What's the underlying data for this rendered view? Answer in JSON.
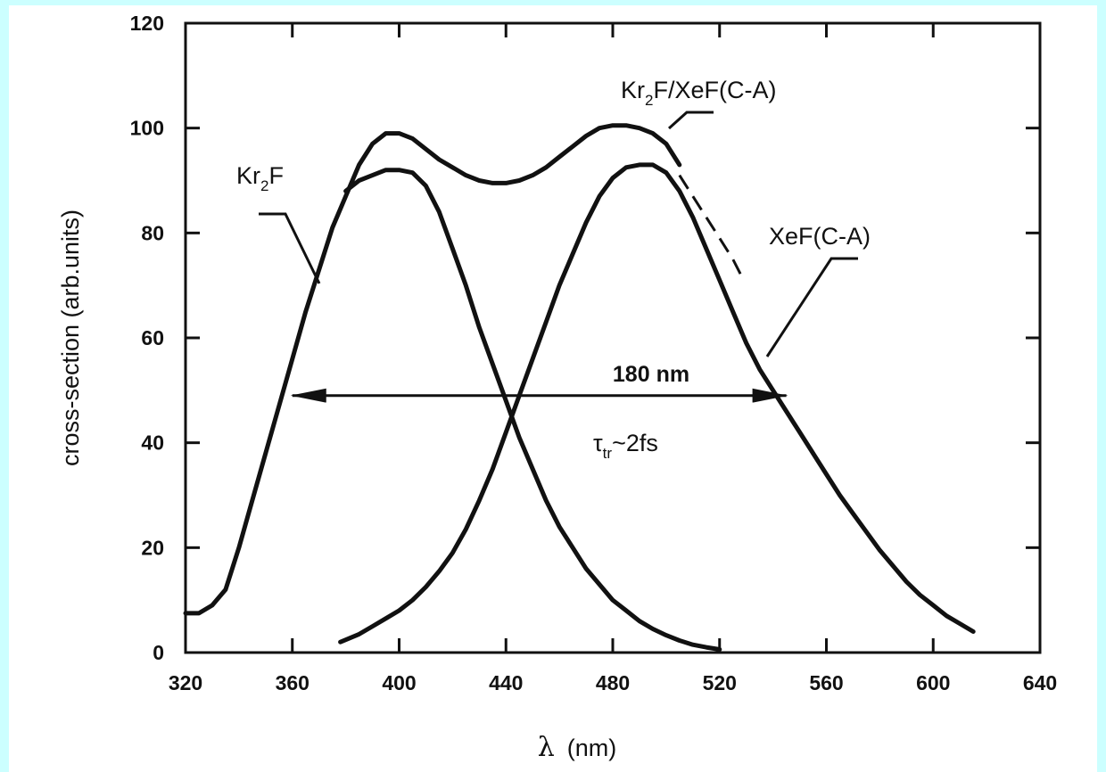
{
  "chart_data": {
    "type": "line",
    "xlabel_symbol": "λ",
    "xlabel_unit": "(nm)",
    "ylabel": "cross-section (arb.units)",
    "xlim": [
      320,
      640
    ],
    "ylim": [
      0,
      120
    ],
    "x_ticks": [
      320,
      360,
      400,
      440,
      480,
      520,
      560,
      600,
      640
    ],
    "y_ticks": [
      0,
      20,
      40,
      60,
      80,
      100,
      120
    ],
    "grid": false,
    "series": [
      {
        "name": "Kr2F",
        "label_main": "Kr",
        "label_sub": "2",
        "label_tail": "F",
        "points": [
          [
            380,
            88
          ],
          [
            385,
            90
          ],
          [
            390,
            91
          ],
          [
            395,
            92
          ],
          [
            400,
            92
          ],
          [
            405,
            91.5
          ],
          [
            410,
            89
          ],
          [
            415,
            84
          ],
          [
            420,
            77
          ],
          [
            425,
            70
          ],
          [
            430,
            62
          ],
          [
            435,
            55
          ],
          [
            440,
            48
          ],
          [
            445,
            41
          ],
          [
            450,
            35
          ],
          [
            455,
            29
          ],
          [
            460,
            24
          ],
          [
            465,
            20
          ],
          [
            470,
            16
          ],
          [
            475,
            13
          ],
          [
            480,
            10
          ],
          [
            485,
            8
          ],
          [
            490,
            6
          ],
          [
            495,
            4.5
          ],
          [
            500,
            3.3
          ],
          [
            505,
            2.3
          ],
          [
            510,
            1.5
          ],
          [
            515,
            1
          ],
          [
            520,
            0.6
          ]
        ]
      },
      {
        "name": "XeF(C-A)",
        "points": [
          [
            378,
            2
          ],
          [
            385,
            3.5
          ],
          [
            390,
            5
          ],
          [
            395,
            6.5
          ],
          [
            400,
            8
          ],
          [
            405,
            10
          ],
          [
            410,
            12.5
          ],
          [
            415,
            15.5
          ],
          [
            420,
            19
          ],
          [
            425,
            23.5
          ],
          [
            430,
            29
          ],
          [
            435,
            35
          ],
          [
            440,
            42
          ],
          [
            445,
            49
          ],
          [
            450,
            56
          ],
          [
            455,
            63
          ],
          [
            460,
            70
          ],
          [
            465,
            76
          ],
          [
            470,
            82
          ],
          [
            475,
            87
          ],
          [
            480,
            90.5
          ],
          [
            485,
            92.5
          ],
          [
            490,
            93
          ],
          [
            495,
            93
          ],
          [
            500,
            91.5
          ],
          [
            505,
            88
          ],
          [
            510,
            83
          ],
          [
            515,
            77
          ],
          [
            520,
            71
          ],
          [
            525,
            65
          ],
          [
            530,
            59
          ],
          [
            535,
            54
          ],
          [
            540,
            50
          ],
          [
            545,
            46
          ],
          [
            550,
            42
          ],
          [
            555,
            38
          ],
          [
            560,
            34
          ],
          [
            565,
            30
          ],
          [
            570,
            26.5
          ],
          [
            575,
            23
          ],
          [
            580,
            19.5
          ],
          [
            585,
            16.5
          ],
          [
            590,
            13.5
          ],
          [
            595,
            11
          ],
          [
            600,
            9
          ],
          [
            605,
            7
          ],
          [
            610,
            5.5
          ],
          [
            615,
            4
          ]
        ]
      },
      {
        "name": "Kr2F/XeF(C-A)",
        "label_main": "Kr",
        "label_sub": "2",
        "label_tail": "F/XeF(C-A)",
        "points": [
          [
            320,
            7.5
          ],
          [
            325,
            7.5
          ],
          [
            330,
            9
          ],
          [
            335,
            12
          ],
          [
            340,
            20
          ],
          [
            345,
            29
          ],
          [
            350,
            38
          ],
          [
            355,
            47
          ],
          [
            360,
            56
          ],
          [
            365,
            65
          ],
          [
            370,
            73
          ],
          [
            375,
            81
          ],
          [
            380,
            87
          ],
          [
            385,
            93
          ],
          [
            390,
            97
          ],
          [
            395,
            99
          ],
          [
            400,
            99
          ],
          [
            405,
            98
          ],
          [
            410,
            96
          ],
          [
            415,
            94
          ],
          [
            420,
            92.5
          ],
          [
            425,
            91
          ],
          [
            430,
            90
          ],
          [
            435,
            89.5
          ],
          [
            440,
            89.5
          ],
          [
            445,
            90
          ],
          [
            450,
            91
          ],
          [
            455,
            92.5
          ],
          [
            460,
            94.5
          ],
          [
            465,
            96.5
          ],
          [
            470,
            98.5
          ],
          [
            475,
            100
          ],
          [
            480,
            100.5
          ],
          [
            485,
            100.5
          ],
          [
            490,
            100
          ],
          [
            495,
            99
          ],
          [
            500,
            97
          ],
          [
            505,
            93
          ]
        ]
      }
    ],
    "dashed_extension": [
      [
        505,
        91
      ],
      [
        510,
        87
      ],
      [
        515,
        83
      ],
      [
        520,
        79
      ],
      [
        525,
        75
      ],
      [
        528,
        72
      ]
    ],
    "fwhm_arrow": {
      "x_start": 360,
      "x_end": 545,
      "y": 49
    },
    "annotations": {
      "fwhm_label": "180 nm",
      "tau_symbol": "τ",
      "tau_sub": "tr",
      "tau_tail": "~2fs"
    }
  }
}
